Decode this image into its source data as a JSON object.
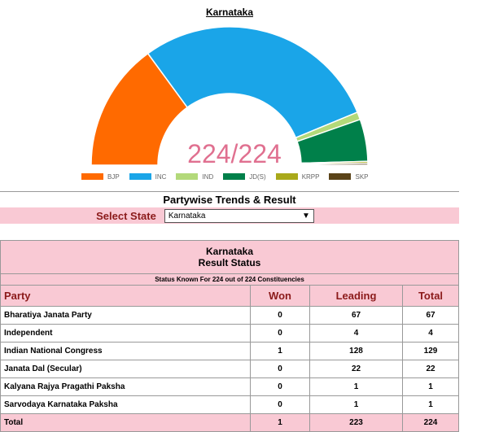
{
  "chart": {
    "title": "Karnataka",
    "center_label": "224/224"
  },
  "chart_data": {
    "type": "pie",
    "title": "Karnataka",
    "total_seats": 224,
    "slices": [
      {
        "name": "BJP",
        "value": 67,
        "color": "#ff6a00"
      },
      {
        "name": "INC",
        "value": 129,
        "color": "#1aa5e8"
      },
      {
        "name": "IND",
        "value": 4,
        "color": "#b3d97a"
      },
      {
        "name": "JD(S)",
        "value": 22,
        "color": "#00804a"
      },
      {
        "name": "KRPP",
        "value": 1,
        "color": "#a9a91a"
      },
      {
        "name": "SKP",
        "value": 1,
        "color": "#5a4318"
      }
    ]
  },
  "trends": {
    "heading": "Partywise Trends & Result",
    "select_label": "Select State",
    "selected_state": "Karnataka"
  },
  "results": {
    "state": "Karnataka",
    "subtitle": "Result Status",
    "status_line": "Status Known For 224 out of 224 Constituencies",
    "columns": [
      "Party",
      "Won",
      "Leading",
      "Total"
    ],
    "rows": [
      {
        "party": "Bharatiya Janata Party",
        "won": "0",
        "leading": "67",
        "total": "67"
      },
      {
        "party": "Independent",
        "won": "0",
        "leading": "4",
        "total": "4"
      },
      {
        "party": "Indian National Congress",
        "won": "1",
        "leading": "128",
        "total": "129"
      },
      {
        "party": "Janata Dal (Secular)",
        "won": "0",
        "leading": "22",
        "total": "22"
      },
      {
        "party": "Kalyana Rajya Pragathi Paksha",
        "won": "0",
        "leading": "1",
        "total": "1"
      },
      {
        "party": "Sarvodaya Karnataka Paksha",
        "won": "0",
        "leading": "1",
        "total": "1"
      }
    ],
    "total_row": {
      "label": "Total",
      "won": "1",
      "leading": "223",
      "total": "224"
    }
  },
  "colors": {
    "pink_bg": "#f9c9d4",
    "maroon_text": "#8b1a1a",
    "center_label": "#e07090"
  }
}
